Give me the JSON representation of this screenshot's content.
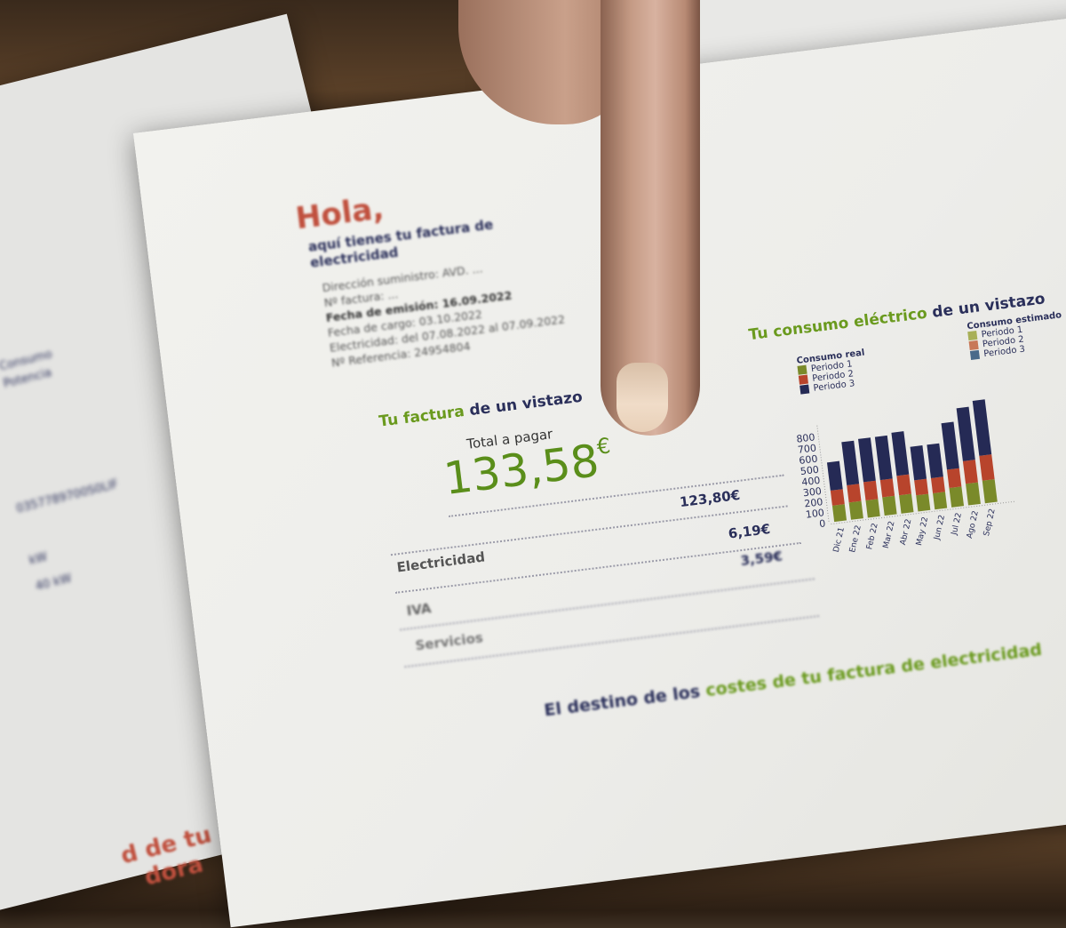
{
  "left_sheet": {
    "lines": [
      "Consumo",
      "Potencia",
      "0357789700S0LIF",
      "kW",
      "40 kW"
    ],
    "bottom_text": [
      "d de tu",
      "dora"
    ]
  },
  "bill": {
    "greeting": "Hola,",
    "subtitle": "aquí tienes tu factura de electricidad",
    "details": [
      "Dirección suministro: AVD. ...",
      "Nº factura: ...",
      "Fecha de emisión: 16.09.2022",
      "Fecha de cargo: 03.10.2022",
      "Electricidad: del 07.08.2022 al 07.09.2022",
      "Nº Referencia: 24954804"
    ],
    "summary": {
      "title_green": "Tu factura",
      "title_navy": "de un vistazo",
      "total_label": "Total a pagar",
      "total_value": "133,58",
      "currency": "€",
      "rows": [
        {
          "label": "Electricidad",
          "value": "123,80€"
        },
        {
          "label": "IVA",
          "value": "6,19€"
        },
        {
          "label": "Servicios",
          "value": "3,59€"
        }
      ]
    },
    "bottom_heading": {
      "navy1": "El destino de los",
      "green": "costes de tu factura de electricidad"
    }
  },
  "chart_data": {
    "type": "bar",
    "stacked": true,
    "title": "Tu consumo eléctrico de un vistazo",
    "title_green": "Tu consumo eléctrico",
    "title_navy": "de un vistazo",
    "legend_real_title": "Consumo real",
    "legend_est_title": "Consumo estimado",
    "categories": [
      "Dic 21",
      "Ene 22",
      "Feb 22",
      "Mar 22",
      "Abr 22",
      "May 22",
      "Jun 22",
      "Jul 22",
      "Ago 22",
      "Sep 22"
    ],
    "yticks": [
      "0",
      "100",
      "200",
      "300",
      "400",
      "500",
      "600",
      "700",
      "800"
    ],
    "ylim": [
      0,
      900
    ],
    "series": [
      {
        "name": "Periodo 1",
        "color": "#7a8a2a",
        "values": [
          150,
          160,
          160,
          170,
          170,
          150,
          150,
          180,
          200,
          210
        ]
      },
      {
        "name": "Periodo 2",
        "color": "#b8442c",
        "values": [
          140,
          160,
          170,
          160,
          180,
          140,
          140,
          170,
          210,
          230
        ]
      },
      {
        "name": "Periodo 3",
        "color": "#252a55",
        "values": [
          260,
          400,
          400,
          400,
          400,
          310,
          310,
          430,
          490,
          510
        ]
      }
    ],
    "estimated_legend": [
      {
        "name": "Periodo 1",
        "color": "#a8b058"
      },
      {
        "name": "Periodo 2",
        "color": "#c87858"
      },
      {
        "name": "Periodo 3",
        "color": "#4a6a8a"
      }
    ]
  }
}
